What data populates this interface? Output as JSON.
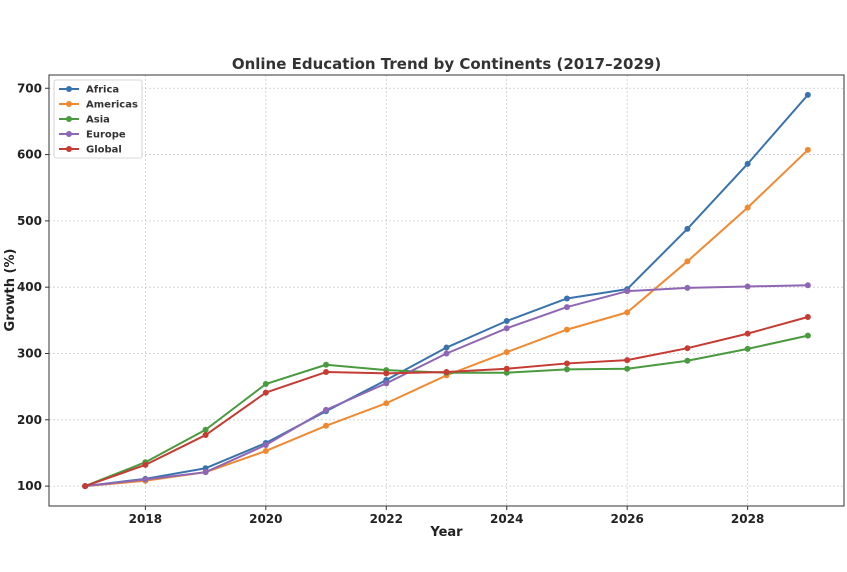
{
  "chart_data": {
    "type": "line",
    "title": "Online Education Trend by Continents (2017–2029)",
    "xlabel": "Year",
    "ylabel": "Growth (%)",
    "xlim": [
      2016.4,
      2029.6
    ],
    "ylim": [
      70,
      720
    ],
    "xticks": [
      2018,
      2020,
      2022,
      2024,
      2026,
      2028
    ],
    "yticks": [
      100,
      200,
      300,
      400,
      500,
      600,
      700
    ],
    "grid": true,
    "legend_position": "top-left",
    "x": [
      2017,
      2018,
      2019,
      2020,
      2021,
      2022,
      2023,
      2024,
      2025,
      2026,
      2027,
      2028,
      2029
    ],
    "series": [
      {
        "name": "Africa",
        "color": "#3a73ac",
        "values": [
          100,
          111,
          127,
          165,
          213,
          260,
          309,
          349,
          383,
          397,
          488,
          586,
          690
        ]
      },
      {
        "name": "Americas",
        "color": "#ef8a32",
        "values": [
          100,
          108,
          121,
          153,
          191,
          225,
          267,
          302,
          336,
          362,
          439,
          520,
          607
        ]
      },
      {
        "name": "Asia",
        "color": "#4a9a3f",
        "values": [
          100,
          136,
          185,
          254,
          283,
          275,
          271,
          271,
          276,
          277,
          289,
          307,
          327
        ]
      },
      {
        "name": "Europe",
        "color": "#8e67b4",
        "values": [
          100,
          110,
          121,
          162,
          215,
          255,
          300,
          338,
          370,
          394,
          399,
          401,
          403
        ]
      },
      {
        "name": "Global",
        "color": "#c43c33",
        "values": [
          100,
          132,
          177,
          241,
          272,
          270,
          272,
          277,
          285,
          290,
          308,
          330,
          355
        ]
      }
    ]
  }
}
